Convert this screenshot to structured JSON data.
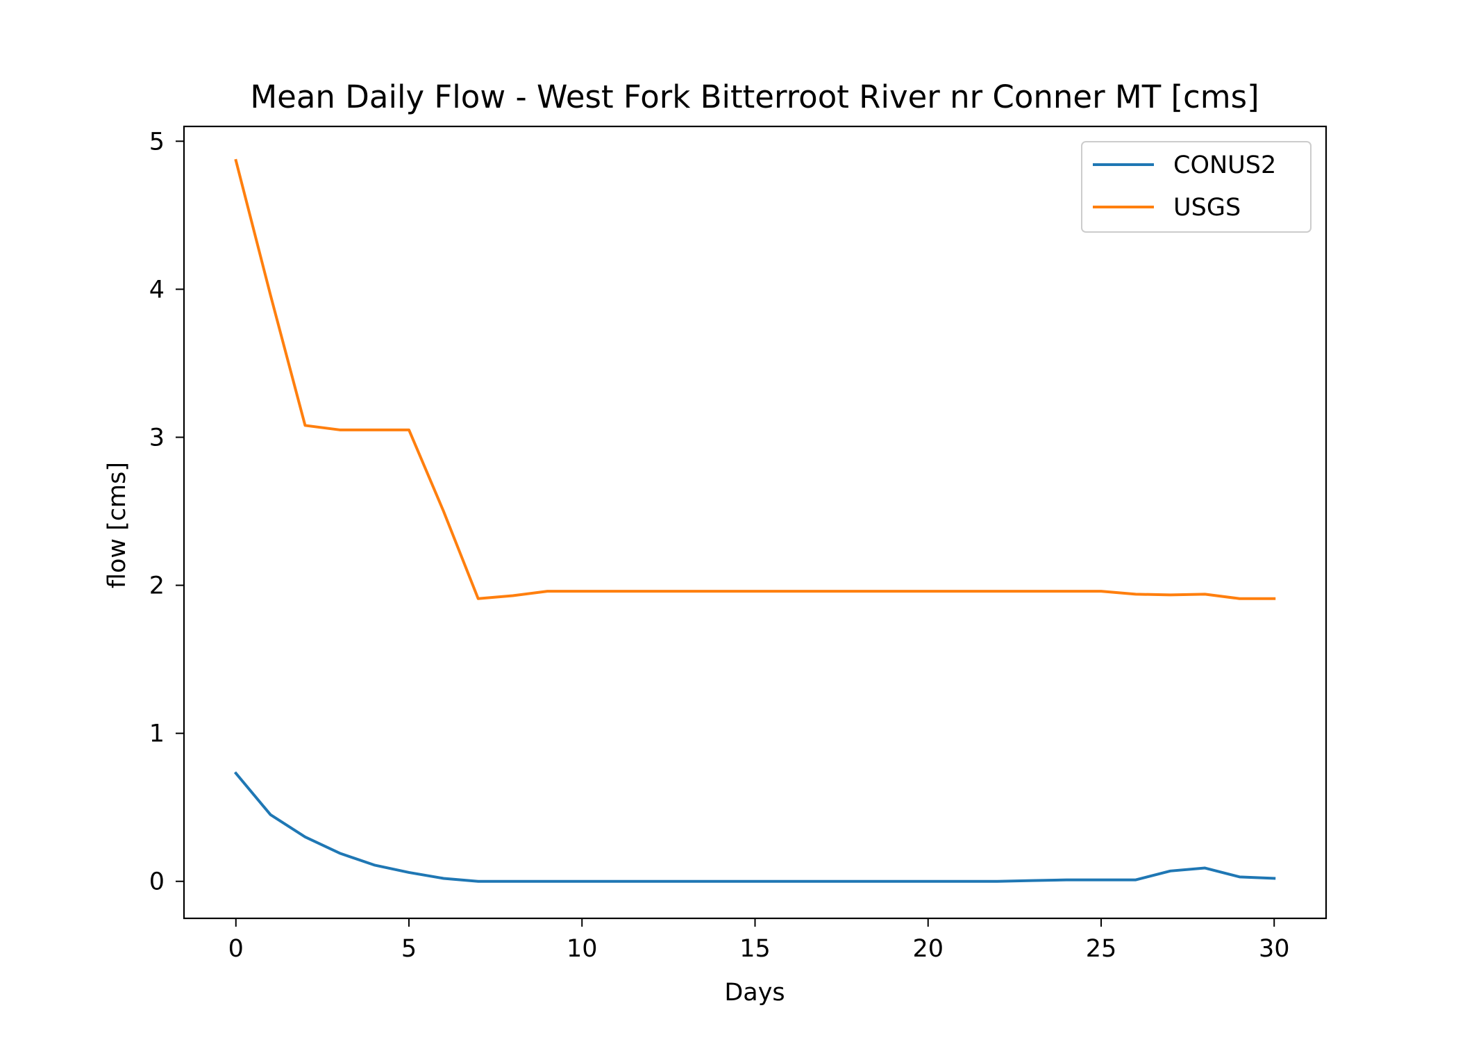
{
  "chart_data": {
    "type": "line",
    "title": "Mean Daily Flow - West Fork Bitterroot River nr Conner MT [cms]",
    "xlabel": "Days",
    "ylabel": "flow [cms]",
    "xlim": [
      -1.5,
      31.5
    ],
    "ylim": [
      -0.25,
      5.1
    ],
    "xticks": [
      0,
      5,
      10,
      15,
      20,
      25,
      30
    ],
    "yticks": [
      0,
      1,
      2,
      3,
      4,
      5
    ],
    "grid": false,
    "legend_position": "upper right",
    "x": [
      0,
      1,
      2,
      3,
      4,
      5,
      6,
      7,
      8,
      9,
      10,
      11,
      12,
      13,
      14,
      15,
      16,
      17,
      18,
      19,
      20,
      21,
      22,
      23,
      24,
      25,
      26,
      27,
      28,
      29,
      30
    ],
    "series": [
      {
        "name": "CONUS2",
        "color": "#1f77b4",
        "values": [
          0.73,
          0.45,
          0.3,
          0.19,
          0.11,
          0.06,
          0.02,
          0.0,
          0.0,
          0.0,
          0.0,
          0.0,
          0.0,
          0.0,
          0.0,
          0.0,
          0.0,
          0.0,
          0.0,
          0.0,
          0.0,
          0.0,
          0.0,
          0.005,
          0.01,
          0.01,
          0.01,
          0.07,
          0.09,
          0.03,
          0.02
        ]
      },
      {
        "name": "USGS",
        "color": "#ff7f0e",
        "values": [
          4.87,
          3.96,
          3.08,
          3.05,
          3.05,
          3.05,
          2.5,
          1.91,
          1.93,
          1.96,
          1.96,
          1.96,
          1.96,
          1.96,
          1.96,
          1.96,
          1.96,
          1.96,
          1.96,
          1.96,
          1.96,
          1.96,
          1.96,
          1.96,
          1.96,
          1.96,
          1.94,
          1.935,
          1.94,
          1.91,
          1.91
        ]
      }
    ]
  }
}
